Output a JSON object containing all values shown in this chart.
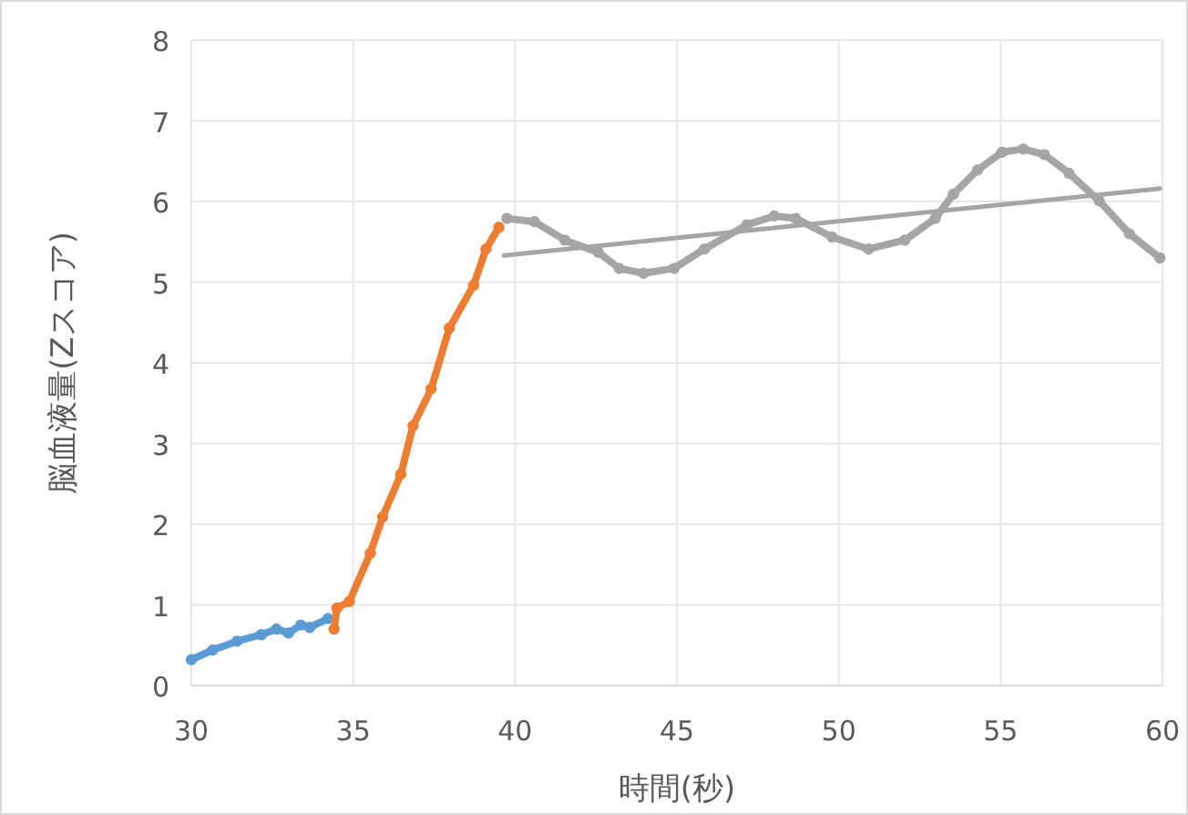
{
  "chart_data": {
    "type": "line",
    "xlabel": "時間(秒)",
    "ylabel": "脳血液量(Zスコア)",
    "xlim": [
      30,
      60
    ],
    "ylim": [
      0,
      8
    ],
    "xticks": [
      30,
      35,
      40,
      45,
      50,
      55,
      60
    ],
    "yticks": [
      0,
      1,
      2,
      3,
      4,
      5,
      6,
      7,
      8
    ],
    "grid": true,
    "marker": "circle",
    "series": [
      {
        "color": "#5b9bd5",
        "x": [
          30.0,
          30.66,
          31.41,
          32.16,
          32.63,
          33.0,
          33.38,
          33.66,
          34.22
        ],
        "values": [
          0.32,
          0.44,
          0.55,
          0.63,
          0.7,
          0.65,
          0.75,
          0.72,
          0.83
        ]
      },
      {
        "color": "#ed7d31",
        "x": [
          34.41,
          34.5,
          34.88,
          35.53,
          35.91,
          36.47,
          36.85,
          37.41,
          37.97,
          38.72,
          39.1,
          39.5
        ],
        "values": [
          0.7,
          0.96,
          1.04,
          1.64,
          2.09,
          2.62,
          3.22,
          3.68,
          4.43,
          4.96,
          5.41,
          5.68
        ]
      },
      {
        "color": "#a5a5a5",
        "x": [
          39.75,
          40.6,
          41.54,
          42.57,
          43.22,
          43.97,
          44.91,
          45.85,
          47.16,
          48.01,
          48.67,
          49.79,
          50.92,
          52.04,
          52.98,
          53.54,
          54.29,
          55.04,
          55.7,
          56.35,
          57.11,
          58.04,
          58.98,
          59.92
        ],
        "values": [
          5.79,
          5.75,
          5.52,
          5.37,
          5.17,
          5.11,
          5.17,
          5.41,
          5.71,
          5.82,
          5.79,
          5.56,
          5.41,
          5.52,
          5.79,
          6.09,
          6.39,
          6.61,
          6.65,
          6.58,
          6.35,
          6.01,
          5.6,
          5.3
        ]
      },
      {
        "type": "line",
        "marker": "none",
        "color": "#a5a5a5",
        "x": [
          39.66,
          59.92
        ],
        "values": [
          5.33,
          6.16
        ]
      }
    ]
  }
}
